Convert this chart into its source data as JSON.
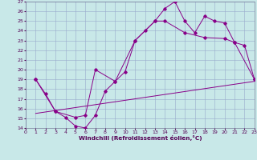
{
  "bg_color": "#c8e8e8",
  "line_color": "#880088",
  "grid_color": "#99aacc",
  "xlabel": "Windchill (Refroidissement éolien,°C)",
  "xlim": [
    0,
    23
  ],
  "ylim": [
    14,
    27
  ],
  "xticks": [
    0,
    1,
    2,
    3,
    4,
    5,
    6,
    7,
    8,
    9,
    10,
    11,
    12,
    13,
    14,
    15,
    16,
    17,
    18,
    19,
    20,
    21,
    22,
    23
  ],
  "yticks": [
    14,
    15,
    16,
    17,
    18,
    19,
    20,
    21,
    22,
    23,
    24,
    25,
    26,
    27
  ],
  "line1_x": [
    1,
    2,
    3,
    4,
    5,
    6,
    7,
    8,
    9,
    10,
    11,
    12,
    13,
    14,
    15,
    16,
    17,
    18,
    19,
    20,
    21,
    22,
    23
  ],
  "line1_y": [
    19.0,
    17.5,
    15.7,
    15.1,
    14.2,
    14.0,
    15.3,
    17.8,
    18.8,
    19.8,
    23.0,
    24.0,
    25.0,
    26.3,
    27.0,
    25.0,
    23.8,
    25.5,
    25.0,
    24.8,
    22.8,
    22.5,
    19.0
  ],
  "line2_x": [
    1,
    3,
    5,
    6,
    7,
    9,
    11,
    13,
    14,
    16,
    18,
    20,
    21,
    23
  ],
  "line2_y": [
    19.0,
    15.7,
    15.1,
    15.3,
    20.0,
    18.8,
    23.0,
    25.0,
    25.0,
    23.8,
    23.3,
    23.2,
    22.8,
    19.0
  ],
  "line3_x": [
    1,
    23
  ],
  "line3_y": [
    15.5,
    18.8
  ]
}
